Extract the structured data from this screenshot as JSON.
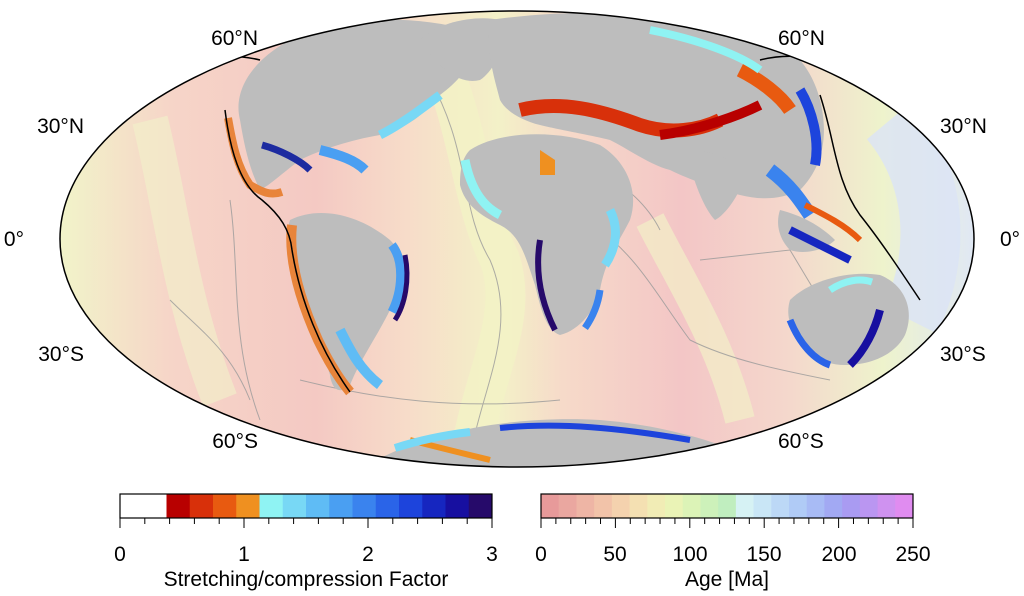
{
  "map": {
    "projection": "mollweide",
    "lat_labels_left": [
      "60°N",
      "30°N",
      "0°",
      "30°S",
      "60°S"
    ],
    "lat_labels_right": [
      "60°N",
      "30°N",
      "0°",
      "30°S",
      "60°S"
    ],
    "colors": {
      "land": "#bdbdbd",
      "ocean_young": "#f4c6c0",
      "ocean_mid": "#f1f5c9",
      "ocean_old": "#d6e2f7",
      "outline": "#000000"
    }
  },
  "colorbars": {
    "stretching": {
      "title": "Stretching/compression Factor",
      "ticks": [
        "0",
        "1",
        "2",
        "3"
      ],
      "colors": [
        "#ffffff",
        "#ffffff",
        "#b80000",
        "#d8300a",
        "#e85a10",
        "#ef9020",
        "#8ff3f3",
        "#78d8f5",
        "#5fbcf5",
        "#4a9ff2",
        "#3a83ee",
        "#2a64e8",
        "#1d44dc",
        "#1626c0",
        "#170fa0",
        "#260a6a"
      ]
    },
    "age": {
      "title": "Age [Ma]",
      "ticks": [
        "0",
        "50",
        "100",
        "150",
        "200",
        "250"
      ],
      "colors": [
        "#e79a9a",
        "#eaa7a0",
        "#eeb5a5",
        "#f2c3a9",
        "#f4d2ae",
        "#f4e0b2",
        "#f1ecb5",
        "#eaf3b6",
        "#dcf3b7",
        "#cdf1ba",
        "#c0eebf",
        "#d6f2f4",
        "#c9e6f6",
        "#bcd8f6",
        "#b0cbf6",
        "#a8bbf5",
        "#a2a9f3",
        "#a99bf2",
        "#ba96f1",
        "#cf92f0",
        "#e08cf0"
      ]
    }
  }
}
